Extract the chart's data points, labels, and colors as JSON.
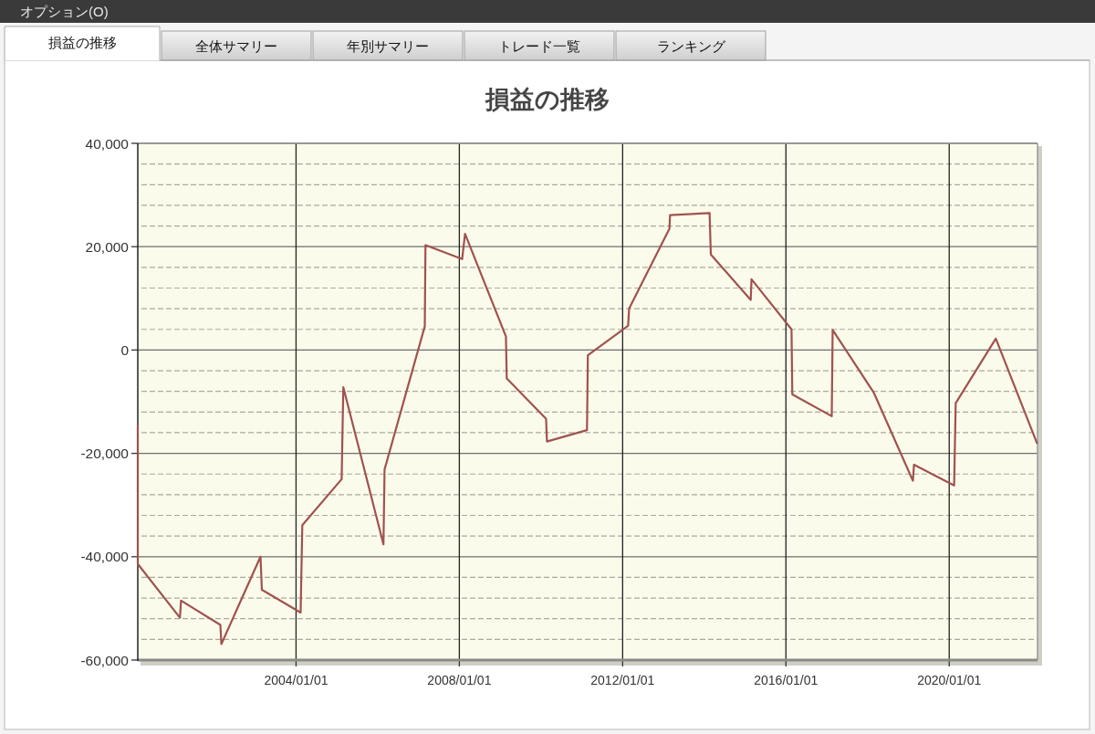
{
  "chart_data": {
    "type": "line",
    "title": "損益の推移",
    "annotations": [
      "オプション(O)",
      "損益の推移",
      "全体サマリー",
      "年別サマリー",
      "トレード一覧",
      "ランキング"
    ],
    "x": [
      "2000-02-15",
      "2000-02-15",
      "2001-02-26",
      "2001-03-08",
      "2002-02-23",
      "2002-03-04",
      "2003-02-17",
      "2003-03-01",
      "2004-02-11",
      "2004-02-26",
      "2005-02-12",
      "2005-02-27",
      "2006-02-21",
      "2006-03-03",
      "2007-02-26",
      "2007-03-04",
      "2008-01-26",
      "2008-02-21",
      "2009-02-21",
      "2009-02-28",
      "2010-02-15",
      "2010-02-23",
      "2011-02-16",
      "2011-02-24",
      "2012-02-19",
      "2012-02-28",
      "2013-02-23",
      "2013-02-28",
      "2014-02-17",
      "2014-02-28",
      "2015-02-20",
      "2015-02-27",
      "2016-02-20",
      "2016-02-27",
      "2017-02-14",
      "2017-02-22",
      "2018-02-24",
      "2019-02-10",
      "2019-02-20",
      "2020-02-14",
      "2020-02-28",
      "2021-02-21",
      "2022-02-24"
    ],
    "series": [
      {
        "color": "#a0524f",
        "values": [
          -14700,
          -41400,
          -51800,
          -48500,
          -53200,
          -56900,
          -40000,
          -46400,
          -50800,
          -33900,
          -25000,
          -7200,
          -37600,
          -23100,
          4600,
          20300,
          17600,
          22500,
          2600,
          -5500,
          -13300,
          -17700,
          -15500,
          -1000,
          4700,
          8000,
          23500,
          26100,
          26500,
          18500,
          9700,
          13700,
          4000,
          -8600,
          -12800,
          3900,
          -8200,
          -25300,
          -22200,
          -26200,
          -10300,
          2200,
          -18000
        ]
      }
    ],
    "xlim": [
      "2000-02-15",
      "2022-03-01"
    ],
    "xticks": [
      {
        "value": "2004-01-01",
        "label": "2004/01/01"
      },
      {
        "value": "2008-01-01",
        "label": "2008/01/01"
      },
      {
        "value": "2012-01-01",
        "label": "2012/01/01"
      },
      {
        "value": "2016-01-01",
        "label": "2016/01/01"
      },
      {
        "value": "2020-01-01",
        "label": "2020/01/01"
      }
    ],
    "ylim": [
      -60000,
      40000
    ],
    "yticks": [
      {
        "value": -60000,
        "label": "-60,000"
      },
      {
        "value": -56000,
        "label": null
      },
      {
        "value": -52000,
        "label": null
      },
      {
        "value": -48000,
        "label": null
      },
      {
        "value": -44000,
        "label": null
      },
      {
        "value": -40000,
        "label": "-40,000"
      },
      {
        "value": -36000,
        "label": null
      },
      {
        "value": -32000,
        "label": null
      },
      {
        "value": -28000,
        "label": null
      },
      {
        "value": -24000,
        "label": null
      },
      {
        "value": -20000,
        "label": "-20,000"
      },
      {
        "value": -16000,
        "label": null
      },
      {
        "value": -12000,
        "label": null
      },
      {
        "value": -8000,
        "label": null
      },
      {
        "value": -4000,
        "label": null
      },
      0,
      {
        "value": 4000,
        "label": null
      },
      {
        "value": 8000,
        "label": null
      },
      {
        "value": 12000,
        "label": null
      },
      {
        "value": 16000,
        "label": null
      },
      {
        "value": 20000,
        "label": "20,000"
      },
      {
        "value": 24000,
        "label": null
      },
      {
        "value": 28000,
        "label": null
      },
      {
        "value": 32000,
        "label": null
      },
      {
        "value": 36000,
        "label": null
      },
      {
        "value": 40000,
        "label": "40,000"
      }
    ],
    "grid": true
  }
}
